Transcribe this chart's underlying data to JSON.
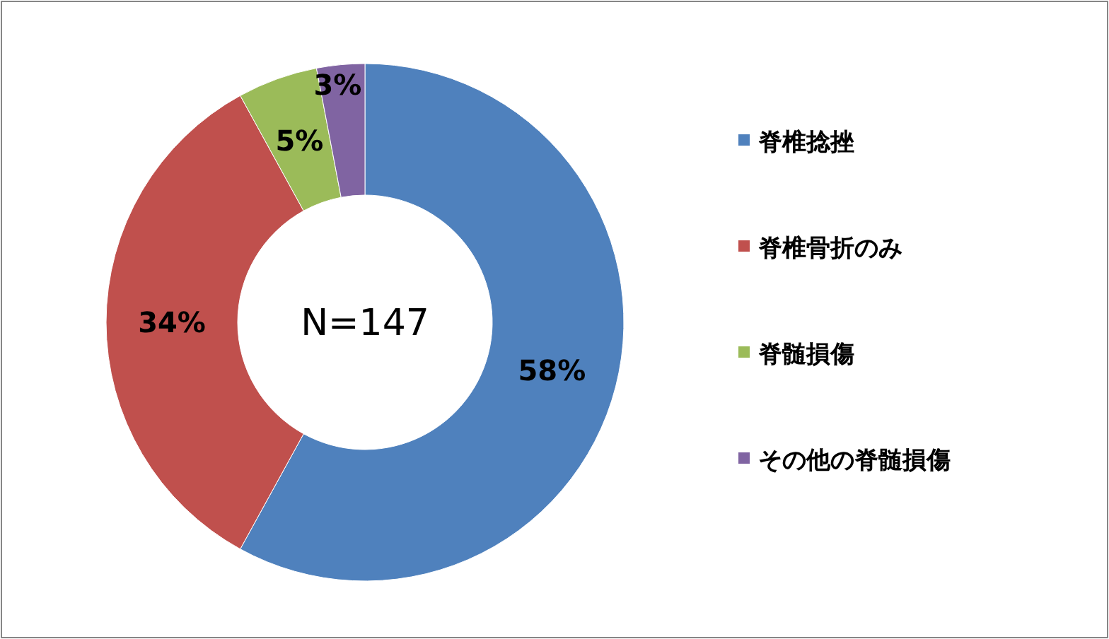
{
  "chart_data": {
    "type": "donut",
    "categories": [
      "脊椎捻挫",
      "脊椎骨折のみ",
      "脊髄損傷",
      "その他の脊髄損傷"
    ],
    "values": [
      58,
      34,
      5,
      3
    ],
    "colors": [
      "#4f81bd",
      "#c0504d",
      "#9bbb59",
      "#8064a2"
    ],
    "annotations": [
      "N=147"
    ],
    "value_labels": [
      "58%",
      "34%",
      "5%",
      "3%"
    ],
    "legend": "right"
  }
}
